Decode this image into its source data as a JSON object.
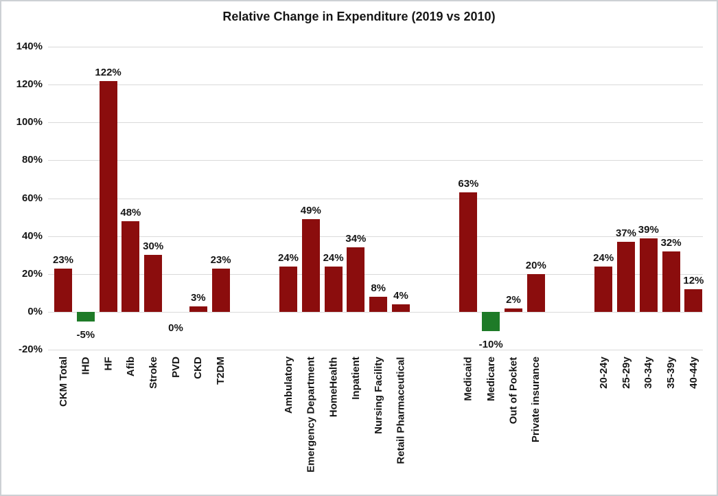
{
  "chart_data": {
    "type": "bar",
    "title": "Relative Change in Expenditure (2019 vs 2010)",
    "xlabel": "",
    "ylabel": "",
    "ylim": [
      -20,
      140
    ],
    "grid": "horizontal",
    "legend": "none",
    "data_labels": true,
    "y_ticks": [
      {
        "value": 140,
        "label": "140%"
      },
      {
        "value": 120,
        "label": "120%"
      },
      {
        "value": 100,
        "label": "100%"
      },
      {
        "value": 80,
        "label": "80%"
      },
      {
        "value": 60,
        "label": "60%"
      },
      {
        "value": 40,
        "label": "40%"
      },
      {
        "value": 20,
        "label": "20%"
      },
      {
        "value": 0,
        "label": "0%"
      },
      {
        "value": -20,
        "label": "-20%"
      }
    ],
    "groups": [
      {
        "id": "conditions",
        "categories": [
          "CKM Total",
          "IHD",
          "HF",
          "Afib",
          "Stroke",
          "PVD",
          "CKD",
          "T2DM"
        ],
        "values": [
          23,
          -5,
          122,
          48,
          30,
          0,
          3,
          23
        ],
        "labels": [
          "23%",
          "-5%",
          "122%",
          "48%",
          "30%",
          "0%",
          "3%",
          "23%"
        ]
      },
      {
        "id": "care-settings",
        "categories": [
          "Ambulatory",
          "Emergency Department",
          "HomeHealth",
          "Inpatient",
          "Nursing Facility",
          "Retail Pharmaceutical"
        ],
        "values": [
          24,
          49,
          24,
          34,
          8,
          4
        ],
        "labels": [
          "24%",
          "49%",
          "24%",
          "34%",
          "8%",
          "4%"
        ]
      },
      {
        "id": "payers",
        "categories": [
          "Medicaid",
          "Medicare",
          "Out of Pocket",
          "Private insurance"
        ],
        "values": [
          63,
          -10,
          2,
          20
        ],
        "labels": [
          "63%",
          "-10%",
          "2%",
          "20%"
        ]
      },
      {
        "id": "age-groups",
        "categories": [
          "20-24y",
          "25-29y",
          "30-34y",
          "35-39y",
          "40-44y"
        ],
        "values": [
          24,
          37,
          39,
          32,
          12
        ],
        "labels": [
          "24%",
          "37%",
          "39%",
          "32%",
          "12%"
        ]
      }
    ],
    "colors": {
      "positive_bar": "#8B0D0D",
      "negative_bar": "#1E7B28",
      "gridline": "#D9D9D9",
      "text": "#161616",
      "frame_border": "#CDD0D4",
      "background": "#FFFFFF"
    }
  }
}
